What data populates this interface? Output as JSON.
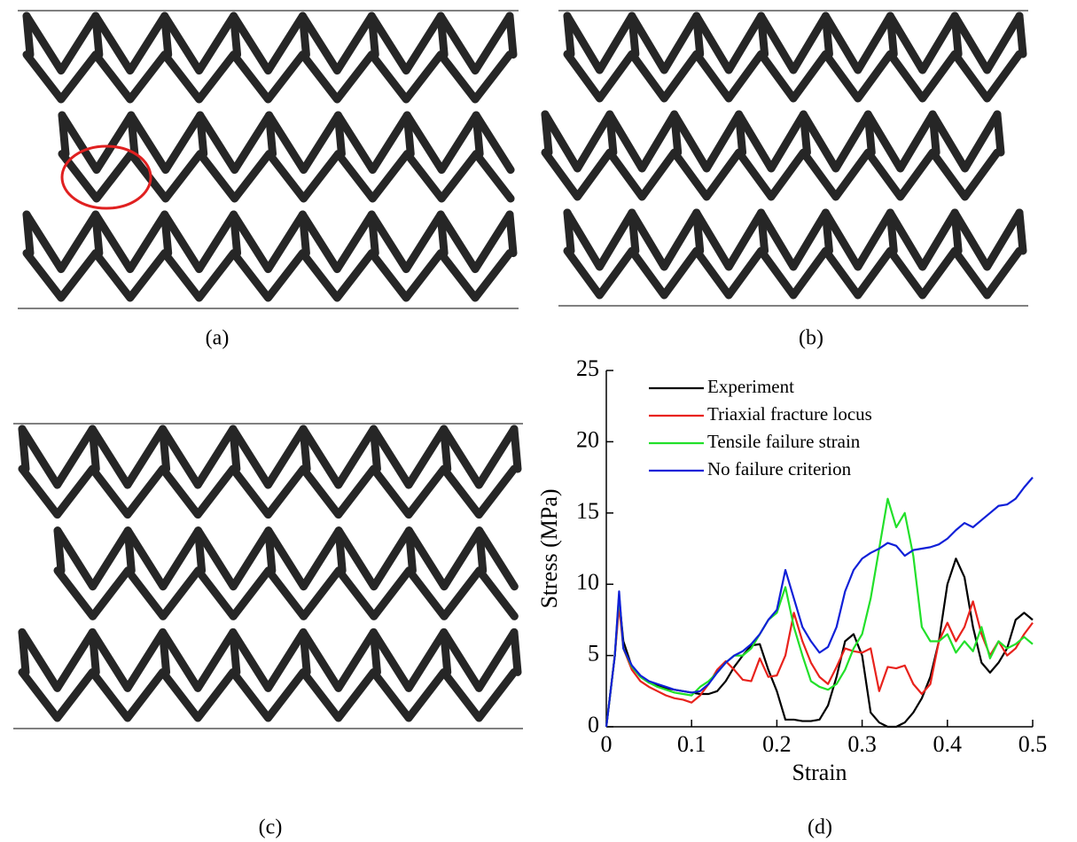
{
  "panel_labels": [
    "(a)",
    "(b)",
    "(c)",
    "(d)"
  ],
  "chart_data": {
    "type": "line",
    "x_label": "Strain",
    "y_label": "Stress (MPa)",
    "x": [
      0,
      0.01,
      0.015,
      0.02,
      0.03,
      0.04,
      0.05,
      0.06,
      0.07,
      0.08,
      0.09,
      0.1,
      0.11,
      0.12,
      0.13,
      0.14,
      0.15,
      0.16,
      0.17,
      0.18,
      0.19,
      0.2,
      0.21,
      0.22,
      0.23,
      0.24,
      0.25,
      0.26,
      0.27,
      0.28,
      0.29,
      0.3,
      0.31,
      0.32,
      0.33,
      0.34,
      0.35,
      0.36,
      0.37,
      0.38,
      0.39,
      0.4,
      0.41,
      0.42,
      0.43,
      0.44,
      0.45,
      0.46,
      0.47,
      0.48,
      0.49,
      0.5
    ],
    "series": [
      {
        "name": "Experiment",
        "color": "#000000",
        "values": [
          0,
          5,
          9,
          6,
          4.2,
          3.5,
          3.1,
          2.9,
          2.7,
          2.6,
          2.5,
          2.4,
          2.3,
          2.3,
          2.5,
          3.2,
          4.2,
          5.0,
          5.7,
          5.8,
          4.0,
          2.5,
          0.5,
          0.5,
          0.4,
          0.4,
          0.5,
          1.5,
          3.5,
          6.0,
          6.5,
          5.0,
          1.0,
          0.3,
          0,
          0,
          0.3,
          1.0,
          2.0,
          3.5,
          6.0,
          10.0,
          11.8,
          10.5,
          7.0,
          4.5,
          3.8,
          4.5,
          5.5,
          7.5,
          8.0,
          7.5
        ]
      },
      {
        "name": "Triaxial fracture locus",
        "color": "#e8221c",
        "values": [
          0,
          5,
          8.5,
          5.5,
          4.0,
          3.2,
          2.8,
          2.5,
          2.2,
          2.0,
          1.9,
          1.7,
          2.2,
          3.0,
          4.0,
          4.6,
          4.0,
          3.3,
          3.2,
          4.8,
          3.5,
          3.6,
          5.0,
          8.0,
          6.0,
          4.5,
          3.5,
          3.0,
          4.2,
          5.5,
          5.3,
          5.2,
          5.5,
          2.5,
          4.2,
          4.1,
          4.3,
          3.0,
          2.3,
          3.0,
          6.0,
          7.3,
          6.0,
          7.0,
          8.8,
          6.5,
          5.0,
          6.0,
          5.0,
          5.5,
          6.5,
          7.3
        ]
      },
      {
        "name": "Tensile failure strain",
        "color": "#22e02a",
        "values": [
          0,
          5,
          9.3,
          5.5,
          4.2,
          3.5,
          3.1,
          2.8,
          2.6,
          2.4,
          2.3,
          2.2,
          2.8,
          3.2,
          3.8,
          4.5,
          5.0,
          5.0,
          5.5,
          6.5,
          7.5,
          8.0,
          9.8,
          7.0,
          5.0,
          3.2,
          2.8,
          2.6,
          3.0,
          4.0,
          5.5,
          6.5,
          9.0,
          12.5,
          16.0,
          14.0,
          15.0,
          12.0,
          7.0,
          6.0,
          6.0,
          6.5,
          5.2,
          6.0,
          5.3,
          7.0,
          4.8,
          6.0,
          5.5,
          5.8,
          6.3,
          5.8
        ]
      },
      {
        "name": "No failure criterion",
        "color": "#1020d8",
        "values": [
          0,
          5,
          9.5,
          5.5,
          4.3,
          3.6,
          3.2,
          3.0,
          2.8,
          2.6,
          2.5,
          2.4,
          2.5,
          3.0,
          3.8,
          4.5,
          5.0,
          5.3,
          5.8,
          6.5,
          7.5,
          8.2,
          11.0,
          9.0,
          7.0,
          6.0,
          5.2,
          5.6,
          7.0,
          9.5,
          11.0,
          11.8,
          12.2,
          12.5,
          12.9,
          12.7,
          12.0,
          12.4,
          12.5,
          12.6,
          12.8,
          13.2,
          13.8,
          14.3,
          14.0,
          14.5,
          15.0,
          15.5,
          15.6,
          16.0,
          16.8,
          17.5
        ]
      }
    ],
    "xlim": [
      0,
      0.5
    ],
    "xticks": [
      0,
      0.1,
      0.2,
      0.3,
      0.4,
      0.5
    ],
    "ylim": [
      0,
      25
    ],
    "yticks": [
      0,
      5,
      10,
      15,
      20,
      25
    ],
    "legend": "upper-left"
  }
}
